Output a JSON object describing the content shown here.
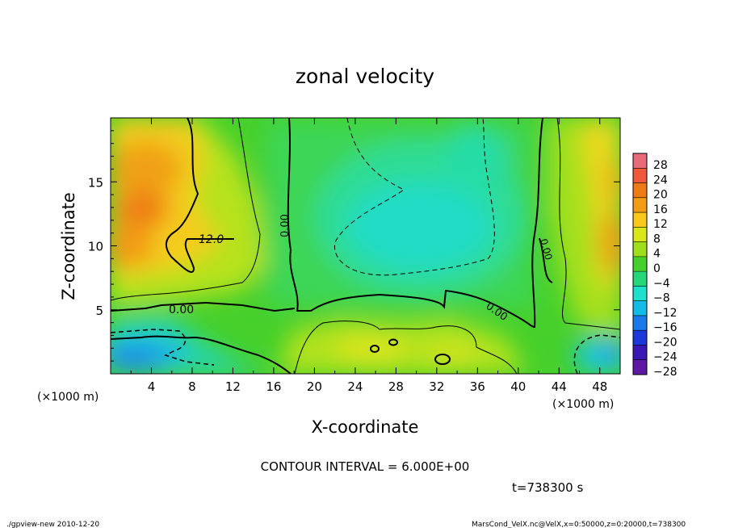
{
  "chart_data": {
    "type": "heatmap",
    "title": "zonal velocity",
    "xlabel": "X-coordinate",
    "ylabel": "Z-coordinate",
    "x_unit": "(×1000 m)",
    "y_unit": "(×1000 m)",
    "x_ticks": [
      4,
      8,
      12,
      16,
      20,
      24,
      28,
      32,
      36,
      40,
      44,
      48
    ],
    "y_ticks": [
      5,
      10,
      15
    ],
    "xlim": [
      0,
      50
    ],
    "ylim": [
      0,
      20
    ],
    "colorbar": {
      "labels": [
        "28",
        "24",
        "20",
        "16",
        "12",
        "8",
        "4",
        "0",
        "−4",
        "−8",
        "−12",
        "−16",
        "−20",
        "−24",
        "−28"
      ],
      "colors": [
        "#e96b7a",
        "#f05a3c",
        "#ee7a16",
        "#f39c16",
        "#f8c81c",
        "#d8e61a",
        "#9ede1c",
        "#46d02c",
        "#28d67a",
        "#1ee0cc",
        "#12bce6",
        "#1a7ae8",
        "#1c38d8",
        "#3a18b4",
        "#5e18a4"
      ]
    },
    "contour_labels": [
      "12.0",
      "0.00",
      "0.00",
      "0.00",
      "0.00"
    ],
    "contour_interval": "CONTOUR INTERVAL = 6.000E+00",
    "time_label": "t=738300 s",
    "grid": false
  },
  "footer": {
    "left": "./gpview-new   2010-12-20",
    "right": "MarsCond_VelX.nc@VelX,x=0:50000,z=0:20000,t=738300"
  }
}
